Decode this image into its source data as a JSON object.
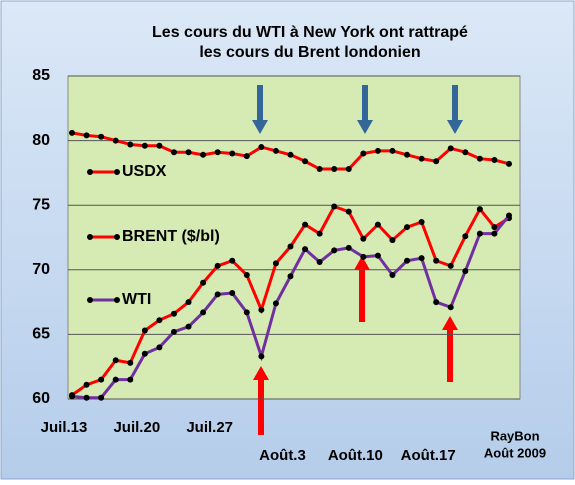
{
  "chart_data": {
    "type": "line",
    "title": "Les cours du WTI à New York ont rattrapé",
    "subtitle": "les cours du Brent londonien",
    "categories": [
      "Juil.13",
      null,
      null,
      null,
      null,
      "Juil.20",
      null,
      null,
      null,
      null,
      "Juil.27",
      null,
      null,
      null,
      null,
      "Août.3",
      null,
      null,
      null,
      null,
      "Août.10",
      null,
      null,
      null,
      null,
      "Août.17",
      null,
      null,
      null,
      null,
      null
    ],
    "series": [
      {
        "name": "USDX",
        "color": "#ff0000",
        "values": [
          80.6,
          80.4,
          80.3,
          80.0,
          79.7,
          79.6,
          79.6,
          79.1,
          79.1,
          78.9,
          79.1,
          79.0,
          78.8,
          79.5,
          79.2,
          78.9,
          78.4,
          77.8,
          77.8,
          77.8,
          79.0,
          79.2,
          79.2,
          78.9,
          78.6,
          78.4,
          79.4,
          79.1,
          78.6,
          78.5,
          78.2
        ]
      },
      {
        "name": "BRENT ($/bl)",
        "color": "#ff0000",
        "values": [
          60.3,
          61.1,
          61.5,
          63.0,
          62.8,
          65.3,
          66.1,
          66.6,
          67.5,
          69.0,
          70.3,
          70.7,
          69.6,
          66.9,
          70.5,
          71.8,
          73.5,
          72.8,
          74.9,
          74.5,
          72.4,
          73.5,
          72.3,
          73.3,
          73.7,
          70.7,
          70.3,
          72.6,
          74.7,
          73.3,
          74.0
        ]
      },
      {
        "name": "WTI",
        "color": "#7030a0",
        "values": [
          60.2,
          60.1,
          60.1,
          61.5,
          61.5,
          63.5,
          64.0,
          65.2,
          65.6,
          66.7,
          68.1,
          68.2,
          66.7,
          63.3,
          67.4,
          69.5,
          71.6,
          70.6,
          71.5,
          71.7,
          71.0,
          71.1,
          69.6,
          70.7,
          70.9,
          67.5,
          67.1,
          69.9,
          72.8,
          72.8,
          74.2
        ]
      }
    ],
    "ylim": [
      60,
      85
    ],
    "yticks": [
      60,
      65,
      70,
      75,
      80,
      85
    ],
    "grid": true,
    "annotations": [
      "RayBon",
      "Août 2009"
    ]
  }
}
